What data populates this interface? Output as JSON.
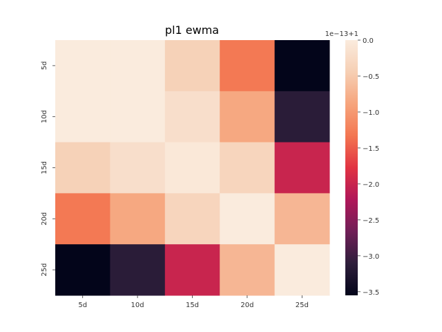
{
  "chart_data": {
    "type": "heatmap",
    "title": "pl1 ewma",
    "x_categories": [
      "5d",
      "10d",
      "15d",
      "20d",
      "25d"
    ],
    "y_categories": [
      "5d",
      "10d",
      "15d",
      "20d",
      "25d"
    ],
    "values": [
      [
        0.0,
        0.0,
        -0.4,
        -1.3,
        -3.55
      ],
      [
        0.0,
        0.0,
        -0.2,
        -0.85,
        -3.15
      ],
      [
        -0.4,
        -0.2,
        -0.05,
        -0.35,
        -2.0
      ],
      [
        -1.3,
        -0.85,
        -0.35,
        0.0,
        -0.7
      ],
      [
        -3.55,
        -3.15,
        -2.0,
        -0.7,
        0.0
      ]
    ],
    "colorbar": {
      "offset_label": "1e−13+1",
      "vmin": -3.55,
      "vmax": 0.0,
      "ticks": [
        0.0,
        -0.5,
        -1.0,
        -1.5,
        -2.0,
        -2.5,
        -3.0,
        -3.5
      ],
      "tick_labels": [
        "0.0",
        "−0.5",
        "−1.0",
        "−1.5",
        "−2.0",
        "−2.5",
        "−3.0",
        "−3.5"
      ],
      "colormap": "rocket"
    },
    "grid": false
  }
}
